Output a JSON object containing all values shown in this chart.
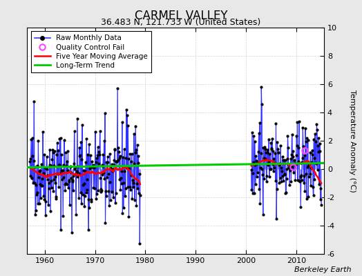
{
  "title": "CARMEL VALLEY",
  "subtitle": "36.483 N, 121.733 W (United States)",
  "ylabel": "Temperature Anomaly (°C)",
  "attribution": "Berkeley Earth",
  "xlim": [
    1956.5,
    2015.5
  ],
  "ylim": [
    -6,
    10
  ],
  "yticks": [
    -6,
    -4,
    -2,
    0,
    2,
    4,
    6,
    8,
    10
  ],
  "xticks": [
    1960,
    1970,
    1980,
    1990,
    2000,
    2010
  ],
  "bg_color": "#e8e8e8",
  "plot_bg_color": "#ffffff",
  "period1_start": 1957,
  "period1_end": 1978,
  "period2_start": 2001,
  "period2_end": 2014,
  "long_term_trend_x": [
    1956.5,
    2015.5
  ],
  "long_term_trend_y": [
    0.12,
    0.42
  ],
  "qc_fail_t": [
    2011.7,
    2009.3
  ],
  "qc_fail_v": [
    1.3,
    0.15
  ],
  "seed": 42,
  "raw_line_color": "#3333ff",
  "stem_color": "#9999ff",
  "ma_color": "#ff0000",
  "trend_color": "#00cc00",
  "qc_color": "#ff44ff",
  "grid_color": "#cccccc",
  "title_fontsize": 12,
  "subtitle_fontsize": 9,
  "tick_fontsize": 8,
  "legend_fontsize": 7.5,
  "ylabel_fontsize": 8
}
